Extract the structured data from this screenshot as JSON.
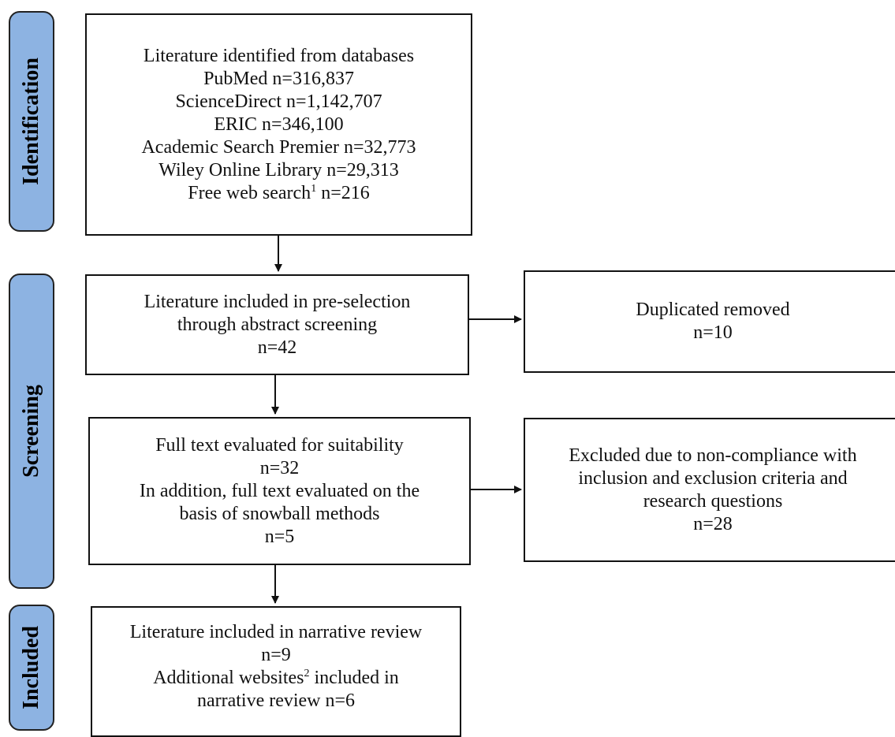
{
  "phases": {
    "identification": "Identification",
    "screening": "Screening",
    "included": "Included"
  },
  "boxes": {
    "identified": {
      "lines": [
        "Literature identified from databases",
        "PubMed n=316,837",
        "ScienceDirect n=1,142,707",
        "ERIC n=346,100",
        "Academic Search Premier n=32,773",
        "Wiley Online Library n=29,313"
      ],
      "web_search_text": "Free web search",
      "web_search_sup": "1",
      "web_search_count": " n=216"
    },
    "preselection": {
      "lines": [
        "Literature included in pre-selection",
        "through abstract screening",
        "n=42"
      ]
    },
    "duplicates": {
      "lines": [
        "Duplicated removed",
        "n=10"
      ]
    },
    "fulltext": {
      "lines": [
        "Full text evaluated for suitability",
        "n=32",
        "In addition, full text evaluated on the",
        "basis of snowball methods",
        "n=5"
      ]
    },
    "excluded": {
      "lines": [
        "Excluded due to non-compliance with",
        "inclusion and exclusion criteria and",
        "research questions",
        "n=28"
      ]
    },
    "included": {
      "lines": [
        "Literature included in narrative review",
        "n=9"
      ],
      "websites_text": "Additional websites",
      "websites_sup": "2",
      "websites_rest": " included in",
      "final_line": "narrative review n=6"
    }
  }
}
